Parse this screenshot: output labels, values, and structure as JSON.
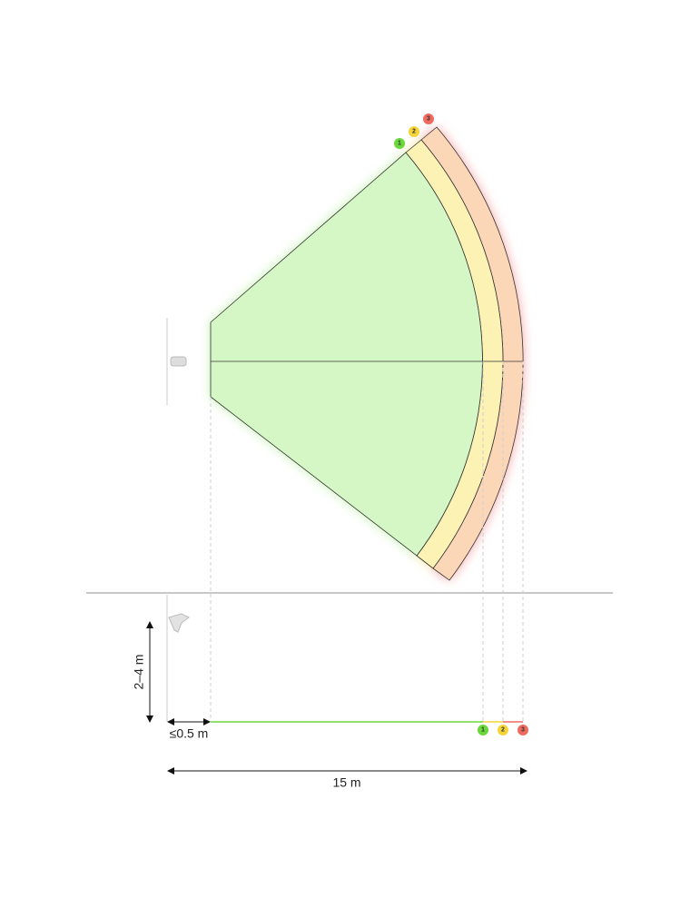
{
  "zones": [
    {
      "label": "1"
    },
    {
      "label": "2"
    },
    {
      "label": "3"
    }
  ],
  "dimensions": {
    "height": "2–4 m",
    "offset": "≤0.5 m",
    "range": "15 m"
  }
}
